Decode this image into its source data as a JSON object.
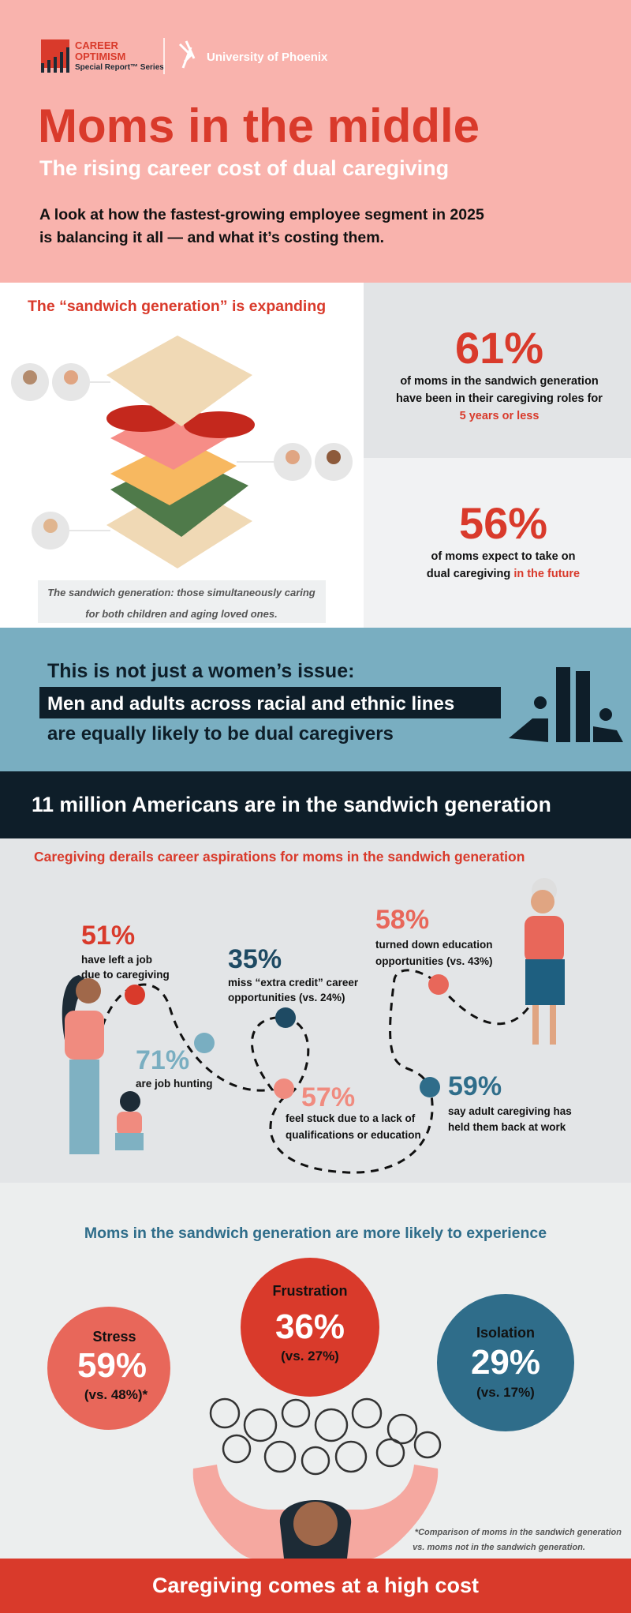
{
  "header": {
    "brand": {
      "line1": "CAREER",
      "line2": "OPTIMISM",
      "series": "Special Report™ Series"
    },
    "partner": "University of Phoenix",
    "title": "Moms in the middle",
    "subtitle": "The rising career cost of dual caregiving",
    "intro": [
      "A look at how the fastest-growing employee segment in 2025",
      "is balancing it all — and what it’s costing them."
    ]
  },
  "sandwich": {
    "heading": "The “sandwich generation” is expanding",
    "caption": [
      "The sandwich generation: those simultaneously caring",
      "for both children and aging loved ones."
    ],
    "stats": [
      {
        "value": "61%",
        "lines": [
          "of moms in the sandwich generation",
          "have been in their caregiving roles for"
        ],
        "highlight": "5 years or less"
      },
      {
        "value": "56%",
        "lines": [
          "of moms expect to take on",
          "dual caregiving "
        ],
        "highlight": "in the future"
      }
    ]
  },
  "equality": {
    "line1": "This is not just a women’s issue:",
    "highlight": "Men and adults across racial and ethnic lines",
    "line3": "are equally likely to be dual caregivers"
  },
  "banner": "11 million Americans are in the sandwich generation",
  "career": {
    "heading": "Caregiving derails career aspirations for moms in the sandwich generation",
    "stats": [
      {
        "value": "51%",
        "lines": [
          "have left a job",
          "due to caregiving"
        ]
      },
      {
        "value": "35%",
        "lines": [
          "miss “extra credit” career",
          "opportunities (vs. 24%)"
        ]
      },
      {
        "value": "58%",
        "lines": [
          "turned down education",
          "opportunities (vs. 43%)"
        ]
      },
      {
        "value": "71%",
        "lines": [
          "are job hunting"
        ]
      },
      {
        "value": "57%",
        "lines": [
          "feel stuck due to a lack of",
          "qualifications or education"
        ]
      },
      {
        "value": "59%",
        "lines": [
          "say adult caregiving has",
          "held them back at work"
        ]
      }
    ]
  },
  "experience": {
    "heading": "Moms in the sandwich generation are more likely to experience",
    "items": [
      {
        "label": "Stress",
        "value": "59%",
        "comparison": "(vs. 48%)*"
      },
      {
        "label": "Frustration",
        "value": "36%",
        "comparison": "(vs. 27%)"
      },
      {
        "label": "Isolation",
        "value": "29%",
        "comparison": "(vs. 17%)"
      }
    ],
    "footnote": [
      "*Comparison of moms in the sandwich generation",
      "vs. moms not in the sandwich generation."
    ]
  },
  "footer": "Caregiving comes at a high cost"
}
